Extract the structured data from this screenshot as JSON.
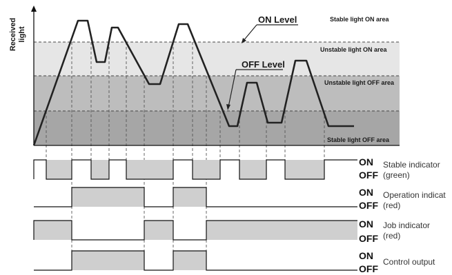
{
  "axis": {
    "ylabel_line1": "Received",
    "ylabel_line2": "light"
  },
  "levels": {
    "on_level": "ON Level",
    "off_level": "OFF Level"
  },
  "areas": {
    "stable_on": "Stable light ON area",
    "unstable_on": "Unstable light ON area",
    "unstable_off": "Unstable light OFF area",
    "stable_off": "Stable light OFF area"
  },
  "timing_rows": [
    {
      "on": "ON",
      "off": "OFF",
      "label_line1": "Stable indicator",
      "label_line2": "(green)"
    },
    {
      "on": "ON",
      "off": "OFF",
      "label_line1": "Operation indicat",
      "label_line2": "(red)"
    },
    {
      "on": "ON",
      "off": "OFF",
      "label_line1": "Job indicator",
      "label_line2": "(red)"
    },
    {
      "on": "ON",
      "off": "OFF",
      "label_line1": "Control output",
      "label_line2": ""
    }
  ],
  "colors": {
    "stable_off_band": "#a6a6a6",
    "unstable_off_band": "#bdbdbd",
    "unstable_on_band": "#e6e6e6",
    "pulse_fill": "#cfcfcf",
    "signal_line": "#222222"
  }
}
